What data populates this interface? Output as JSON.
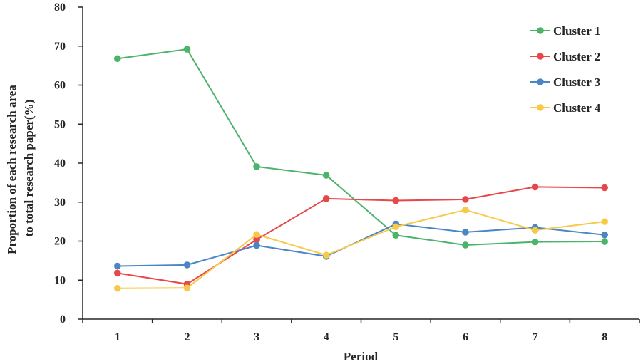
{
  "chart_data": {
    "type": "line",
    "x": [
      1,
      2,
      3,
      4,
      5,
      6,
      7,
      8
    ],
    "xlabel": "Period",
    "ylabel_lines": [
      "Proportion of each research area",
      "to total research paper(%)"
    ],
    "ylim": [
      0,
      80
    ],
    "yticks": [
      0,
      10,
      20,
      30,
      40,
      50,
      60,
      70,
      80
    ],
    "grid": false,
    "legend_position": "top-right",
    "series": [
      {
        "name": "Cluster 1",
        "color": "#4cb36a",
        "values": [
          66.8,
          69.2,
          39.1,
          36.9,
          21.5,
          19.0,
          19.8,
          19.9
        ]
      },
      {
        "name": "Cluster 2",
        "color": "#e8474a",
        "values": [
          11.8,
          9.0,
          20.4,
          30.9,
          30.4,
          30.7,
          33.9,
          33.7
        ]
      },
      {
        "name": "Cluster 3",
        "color": "#4a86c5",
        "values": [
          13.6,
          13.9,
          18.9,
          16.1,
          24.4,
          22.3,
          23.5,
          21.6
        ]
      },
      {
        "name": "Cluster 4",
        "color": "#f7c948",
        "values": [
          7.9,
          8.0,
          21.7,
          16.4,
          23.7,
          28.0,
          22.8,
          25.0
        ]
      }
    ]
  }
}
